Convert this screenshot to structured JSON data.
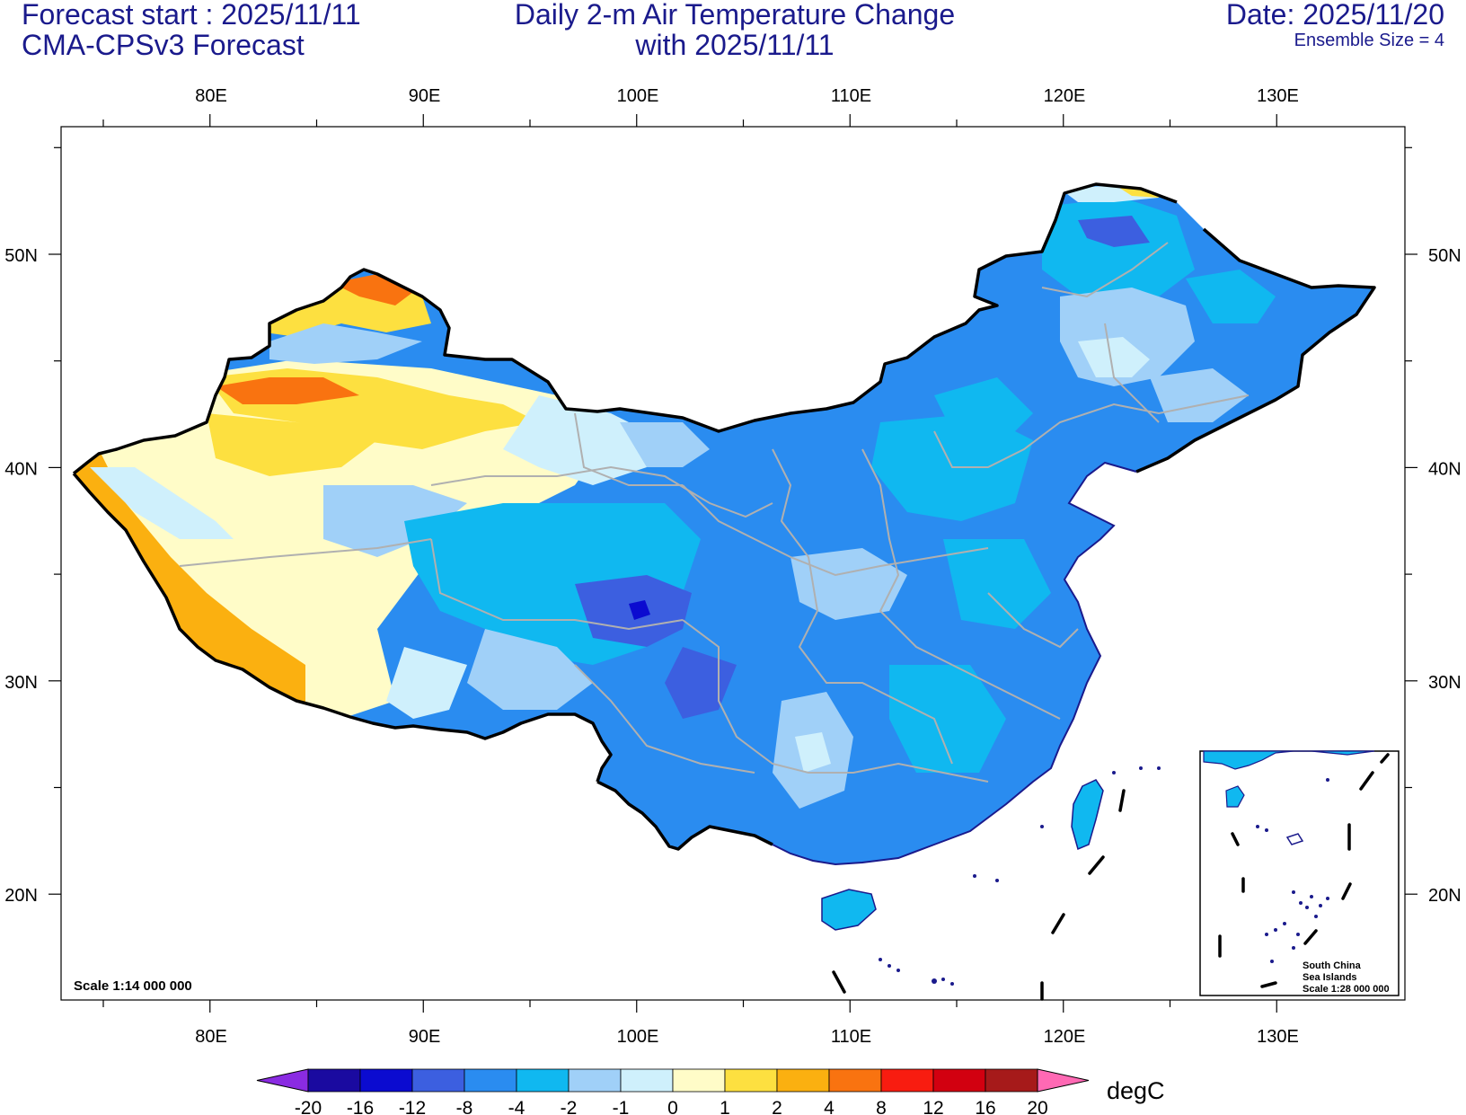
{
  "header": {
    "forecast_start": "Forecast start : 2025/11/11",
    "model": "CMA-CPSv3 Forecast",
    "title_line1": "Daily 2-m Air Temperature Change",
    "title_line2": "with 2025/11/11",
    "date": "Date: 2025/11/20",
    "ensemble": "Ensemble Size = 4"
  },
  "map": {
    "lon_labels": [
      "80E",
      "90E",
      "100E",
      "110E",
      "120E",
      "130E"
    ],
    "lat_labels": [
      "50N",
      "40N",
      "30N",
      "20N"
    ],
    "scale_text": "Scale 1:14 000 000",
    "inset": {
      "line1": "South China",
      "line2": "Sea Islands",
      "line3": "Scale 1:28 000 000"
    }
  },
  "colorbar": {
    "unit": "degC",
    "labels": [
      "-20",
      "-16",
      "-12",
      "-8",
      "-4",
      "-2",
      "-1",
      "0",
      "1",
      "2",
      "4",
      "8",
      "12",
      "16",
      "20"
    ],
    "colors": [
      "#1a0aa0",
      "#0b0bd0",
      "#3c5fe0",
      "#2a8cf0",
      "#10b8f0",
      "#a0d0f8",
      "#cff0fc",
      "#fffcc8",
      "#fde040",
      "#fbb010",
      "#f97310",
      "#f81c10",
      "#d20010",
      "#a61a1a"
    ],
    "low_color": "#8a2be2",
    "high_color": "#ff69b4"
  }
}
